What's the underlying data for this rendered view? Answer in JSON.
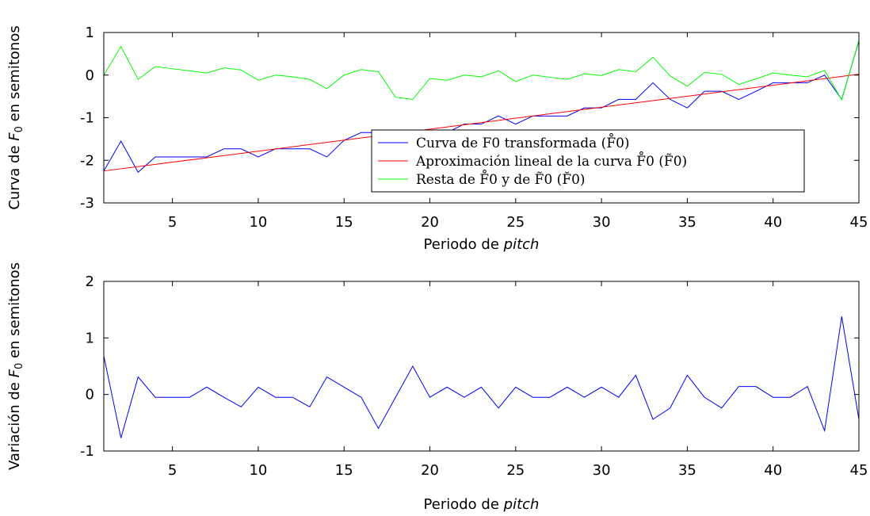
{
  "chart_data": [
    {
      "type": "line",
      "xlabel_prefix": "Periodo de ",
      "xlabel_italic": "pitch",
      "ylabel_prefix": "Curva de ",
      "ylabel_var": "F",
      "ylabel_sub": "0",
      "ylabel_suffix": " en semitonos",
      "xlim": [
        1,
        45
      ],
      "ylim": [
        -3,
        1
      ],
      "xticks": [
        5,
        10,
        15,
        20,
        25,
        30,
        35,
        40,
        45
      ],
      "yticks": [
        -3,
        -2,
        -1,
        0,
        1
      ],
      "legend_position": "center",
      "series": [
        {
          "key": "transformed",
          "color": "#0000ff",
          "legend_text": "Curva de F0 transformada (F̊0)",
          "x": [
            1,
            2,
            3,
            4,
            5,
            6,
            7,
            8,
            9,
            10,
            11,
            12,
            13,
            14,
            15,
            16,
            17,
            18,
            19,
            20,
            21,
            22,
            23,
            24,
            25,
            26,
            27,
            28,
            29,
            30,
            31,
            32,
            33,
            34,
            35,
            36,
            37,
            38,
            39,
            40,
            41,
            42,
            43,
            44,
            45
          ],
          "values": [
            -2.25,
            -1.55,
            -2.28,
            -1.92,
            -1.92,
            -1.92,
            -1.92,
            -1.73,
            -1.73,
            -1.92,
            -1.73,
            -1.73,
            -1.73,
            -1.92,
            -1.53,
            -1.35,
            -1.35,
            -1.35,
            -1.35,
            -1.35,
            -1.35,
            -1.15,
            -1.15,
            -0.96,
            -1.15,
            -0.96,
            -0.96,
            -0.96,
            -0.77,
            -0.77,
            -0.57,
            -0.57,
            -0.18,
            -0.57,
            -0.77,
            -0.38,
            -0.38,
            -0.57,
            -0.38,
            -0.18,
            -0.18,
            -0.18,
            0.0,
            -0.57,
            0.8
          ]
        },
        {
          "key": "linear",
          "color": "#ff0000",
          "legend_text": "Aproximación lineal de la curva F̊0 (F̃0)",
          "x": [
            1,
            45
          ],
          "values": [
            -2.25,
            0.02
          ]
        },
        {
          "key": "difference",
          "color": "#00ff00",
          "legend_text": "Resta de F̊0 y de F̃0 (F̆0)",
          "x": [
            1,
            2,
            3,
            4,
            5,
            6,
            7,
            8,
            9,
            10,
            11,
            12,
            13,
            14,
            15,
            16,
            17,
            18,
            19,
            20,
            21,
            22,
            23,
            24,
            25,
            26,
            27,
            28,
            29,
            30,
            31,
            32,
            33,
            34,
            35,
            36,
            37,
            38,
            39,
            40,
            41,
            42,
            43,
            44,
            45
          ],
          "values": [
            0.0,
            0.67,
            -0.1,
            0.2,
            0.15,
            0.1,
            0.05,
            0.17,
            0.12,
            -0.12,
            0.0,
            -0.04,
            -0.1,
            -0.32,
            0.0,
            0.13,
            0.08,
            -0.52,
            -0.57,
            -0.08,
            -0.12,
            0.0,
            -0.04,
            0.1,
            -0.15,
            0.0,
            -0.05,
            -0.1,
            0.03,
            -0.01,
            0.13,
            0.08,
            0.42,
            -0.02,
            -0.26,
            0.06,
            0.02,
            -0.22,
            -0.09,
            0.05,
            0.0,
            -0.04,
            0.11,
            -0.58,
            0.82
          ]
        }
      ]
    },
    {
      "type": "line",
      "xlabel_prefix": "Periodo de ",
      "xlabel_italic": "pitch",
      "ylabel_prefix": "Variación de ",
      "ylabel_var": "F",
      "ylabel_sub": "0",
      "ylabel_suffix": " en semitonos",
      "xlim": [
        1,
        45
      ],
      "ylim": [
        -1,
        2
      ],
      "xticks": [
        5,
        10,
        15,
        20,
        25,
        30,
        35,
        40,
        45
      ],
      "yticks": [
        -1,
        0,
        1,
        2
      ],
      "series": [
        {
          "key": "variation",
          "color": "#0000ff",
          "x": [
            1,
            2,
            3,
            4,
            5,
            6,
            7,
            8,
            9,
            10,
            11,
            12,
            13,
            14,
            15,
            16,
            17,
            18,
            19,
            20,
            21,
            22,
            23,
            24,
            25,
            26,
            27,
            28,
            29,
            30,
            31,
            32,
            33,
            34,
            35,
            36,
            37,
            38,
            39,
            40,
            41,
            42,
            43,
            44,
            45
          ],
          "values": [
            0.68,
            -0.77,
            0.31,
            -0.05,
            -0.05,
            -0.05,
            0.13,
            -0.05,
            -0.22,
            0.13,
            -0.05,
            -0.05,
            -0.22,
            0.31,
            0.13,
            -0.05,
            -0.6,
            -0.05,
            0.5,
            -0.05,
            0.13,
            -0.05,
            0.13,
            -0.24,
            0.13,
            -0.05,
            -0.05,
            0.13,
            -0.05,
            0.13,
            -0.05,
            0.34,
            -0.44,
            -0.24,
            0.34,
            -0.05,
            -0.24,
            0.14,
            0.14,
            -0.05,
            -0.05,
            0.14,
            -0.64,
            1.38,
            -0.44
          ]
        }
      ]
    }
  ]
}
